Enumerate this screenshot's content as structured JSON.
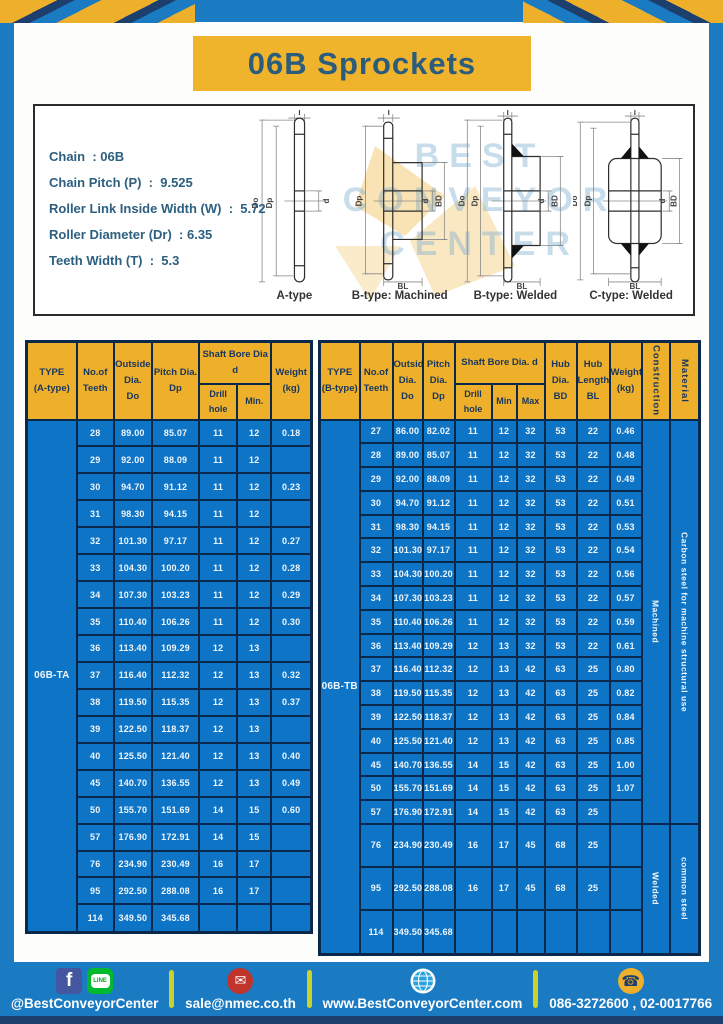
{
  "title": "06B Sprockets",
  "specs": {
    "lines": [
      "Chain  : 06B",
      "Chain Pitch (P)  :  9.525",
      "Roller Link Inside Width (W)  :  5.72",
      "Roller Diameter (Dr)  : 6.35",
      "Teeth Width (T)  :  5.3"
    ]
  },
  "watermark": {
    "line1": "BEST",
    "line2": "CONVEYOR",
    "line3": "CENTER"
  },
  "diagrams": {
    "captions": [
      "A-type",
      "B-type: Machined",
      "B-type: Welded",
      "C-type: Welded"
    ],
    "dims": {
      "t": "T",
      "do": "Do",
      "dp": "Dp",
      "d": "d",
      "bd": "BD",
      "bl": "BL"
    }
  },
  "left_table": {
    "headers": {
      "type": "TYPE\n(A-type)",
      "teeth": "No.of\nTeeth",
      "outside": "Outside\nDia.\nDo",
      "pitch": "Pitch Dia.\nDp",
      "shaft": "Shaft Bore Dia d",
      "drill": "Drill hole",
      "min": "Min.",
      "weight": "Weight\n(kg)"
    },
    "group_label": "06B-TA",
    "rows": [
      [
        "28",
        "89.00",
        "85.07",
        "11",
        "12",
        "0.18"
      ],
      [
        "29",
        "92.00",
        "88.09",
        "11",
        "12",
        ""
      ],
      [
        "30",
        "94.70",
        "91.12",
        "11",
        "12",
        "0.23"
      ],
      [
        "31",
        "98.30",
        "94.15",
        "11",
        "12",
        ""
      ],
      [
        "32",
        "101.30",
        "97.17",
        "11",
        "12",
        "0.27"
      ],
      [
        "33",
        "104.30",
        "100.20",
        "11",
        "12",
        "0.28"
      ],
      [
        "34",
        "107.30",
        "103.23",
        "11",
        "12",
        "0.29"
      ],
      [
        "35",
        "110.40",
        "106.26",
        "11",
        "12",
        "0.30"
      ],
      [
        "36",
        "113.40",
        "109.29",
        "12",
        "13",
        ""
      ],
      [
        "37",
        "116.40",
        "112.32",
        "12",
        "13",
        "0.32"
      ],
      [
        "38",
        "119.50",
        "115.35",
        "12",
        "13",
        "0.37"
      ],
      [
        "39",
        "122.50",
        "118.37",
        "12",
        "13",
        ""
      ],
      [
        "40",
        "125.50",
        "121.40",
        "12",
        "13",
        "0.40"
      ],
      [
        "45",
        "140.70",
        "136.55",
        "12",
        "13",
        "0.49"
      ],
      [
        "50",
        "155.70",
        "151.69",
        "14",
        "15",
        "0.60"
      ],
      [
        "57",
        "176.90",
        "172.91",
        "14",
        "15",
        ""
      ],
      [
        "76",
        "234.90",
        "230.49",
        "16",
        "17",
        ""
      ],
      [
        "95",
        "292.50",
        "288.08",
        "16",
        "17",
        ""
      ],
      [
        "114",
        "349.50",
        "345.68",
        "",
        "",
        ""
      ]
    ]
  },
  "right_table": {
    "headers": {
      "type": "TYPE\n(B-type)",
      "teeth": "No.of\nTeeth",
      "outside": "Outside\nDia.\nDo",
      "pitch": "Pitch\nDia.\nDp",
      "shaft": "Shaft Bore Dia.  d",
      "drill": "Drill hole",
      "min": "Min",
      "max": "Max",
      "hub_dia": "Hub\nDia.\nBD",
      "hub_len": "Hub\nLength\nBL",
      "weight": "Weight\n(kg)",
      "construction": "Construction",
      "material": "Material"
    },
    "group_label": "06B-TB",
    "rows": [
      [
        "27",
        "86.00",
        "82.02",
        "11",
        "12",
        "32",
        "53",
        "22",
        "0.46"
      ],
      [
        "28",
        "89.00",
        "85.07",
        "11",
        "12",
        "32",
        "53",
        "22",
        "0.48"
      ],
      [
        "29",
        "92.00",
        "88.09",
        "11",
        "12",
        "32",
        "53",
        "22",
        "0.49"
      ],
      [
        "30",
        "94.70",
        "91.12",
        "11",
        "12",
        "32",
        "53",
        "22",
        "0.51"
      ],
      [
        "31",
        "98.30",
        "94.15",
        "11",
        "12",
        "32",
        "53",
        "22",
        "0.53"
      ],
      [
        "32",
        "101.30",
        "97.17",
        "11",
        "12",
        "32",
        "53",
        "22",
        "0.54"
      ],
      [
        "33",
        "104.30",
        "100.20",
        "11",
        "12",
        "32",
        "53",
        "22",
        "0.56"
      ],
      [
        "34",
        "107.30",
        "103.23",
        "11",
        "12",
        "32",
        "53",
        "22",
        "0.57"
      ],
      [
        "35",
        "110.40",
        "106.26",
        "11",
        "12",
        "32",
        "53",
        "22",
        "0.59"
      ],
      [
        "36",
        "113.40",
        "109.29",
        "12",
        "13",
        "32",
        "53",
        "22",
        "0.61"
      ],
      [
        "37",
        "116.40",
        "112.32",
        "12",
        "13",
        "42",
        "63",
        "25",
        "0.80"
      ],
      [
        "38",
        "119.50",
        "115.35",
        "12",
        "13",
        "42",
        "63",
        "25",
        "0.82"
      ],
      [
        "39",
        "122.50",
        "118.37",
        "12",
        "13",
        "42",
        "63",
        "25",
        "0.84"
      ],
      [
        "40",
        "125.50",
        "121.40",
        "12",
        "13",
        "42",
        "63",
        "25",
        "0.85"
      ],
      [
        "45",
        "140.70",
        "136.55",
        "14",
        "15",
        "42",
        "63",
        "25",
        "1.00"
      ],
      [
        "50",
        "155.70",
        "151.69",
        "14",
        "15",
        "42",
        "63",
        "25",
        "1.07"
      ],
      [
        "57",
        "176.90",
        "172.91",
        "14",
        "15",
        "42",
        "63",
        "25",
        ""
      ],
      [
        "76",
        "234.90",
        "230.49",
        "16",
        "17",
        "45",
        "68",
        "25",
        ""
      ],
      [
        "95",
        "292.50",
        "288.08",
        "16",
        "17",
        "45",
        "68",
        "25",
        ""
      ],
      [
        "114",
        "349.50",
        "345.68",
        "",
        "",
        "",
        "",
        "",
        ""
      ]
    ],
    "merge": [
      {
        "name": "construction",
        "segments": [
          {
            "label": "Machined",
            "start": 0,
            "span": 17
          },
          {
            "label": "Welded",
            "start": 17,
            "span": 3
          }
        ]
      },
      {
        "name": "material",
        "segments": [
          {
            "label": "Carbon  steel  for  machine  structural  use",
            "start": 0,
            "span": 17
          },
          {
            "label": "common steel",
            "start": 17,
            "span": 3
          }
        ]
      }
    ]
  },
  "footer": {
    "social_label": "@BestConveyorCenter",
    "facebook_glyph": "f",
    "line_glyph": "LINE",
    "email": "sale@nmec.co.th",
    "website": "www.BestConveyorCenter.com",
    "phone": "086-3272600 , 02-0017766",
    "icons": {
      "mail": "✉",
      "phone": "☎"
    }
  },
  "colors": {
    "frame_blue": "#1a7ac2",
    "table_blue": "#0e74c6",
    "header_yellow": "#eeb02a",
    "navy": "#1d3f6e",
    "grid": "#0a2849",
    "title_text": "#2b5c7c",
    "divider_yellow": "#c9d22b"
  }
}
